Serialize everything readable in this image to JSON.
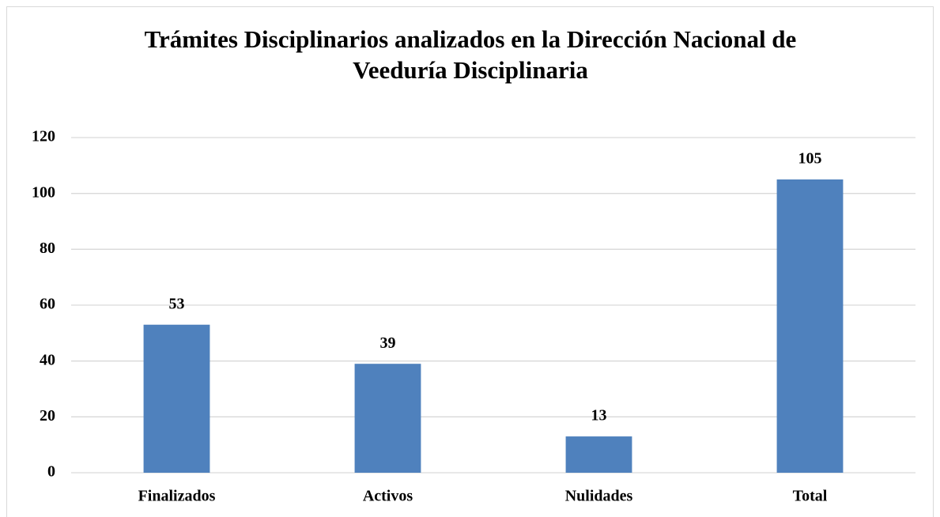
{
  "chart_data": {
    "type": "bar",
    "title": "Trámites Disciplinarios analizados en la Dirección Nacional de Veeduría Disciplinaria",
    "categories": [
      "Finalizados",
      "Activos",
      "Nulidades",
      "Total"
    ],
    "values": [
      53,
      39,
      13,
      105
    ],
    "color": "#4f81bd",
    "ylim": [
      0,
      120
    ],
    "yticks": [
      0,
      20,
      40,
      60,
      80,
      100,
      120
    ],
    "grid": true
  }
}
